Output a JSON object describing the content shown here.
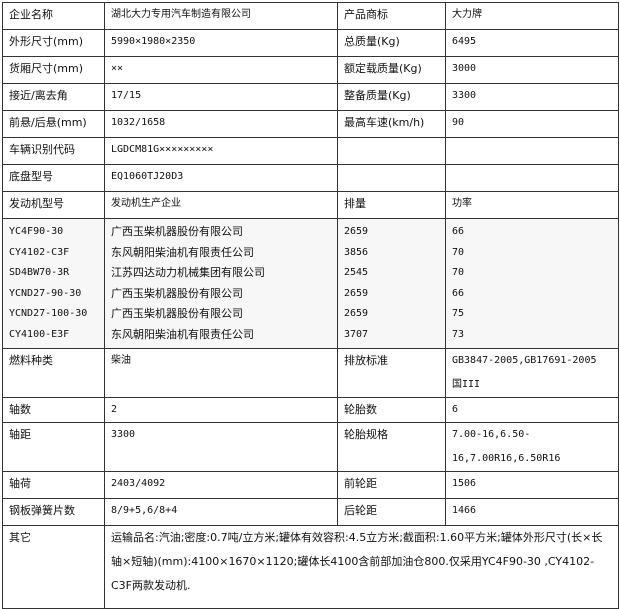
{
  "rows": [
    [
      "企业名称",
      "湖北大力专用汽车制造有限公司",
      "产品商标",
      "大力牌"
    ],
    [
      "外形尺寸(mm)",
      "5990×1980×2350",
      "总质量(Kg)",
      "6495"
    ],
    [
      "货厢尺寸(mm)",
      "××",
      "额定载质量(Kg)",
      "3000"
    ],
    [
      "接近/离去角",
      "17/15",
      "整备质量(Kg)",
      "3300"
    ],
    [
      "前悬/后悬(mm)",
      "1032/1658",
      "最高车速(km/h)",
      "90"
    ],
    [
      "车辆识别代码",
      "LGDCM81G×××××××××",
      "",
      ""
    ],
    [
      "底盘型号",
      "EQ1060TJ20D3",
      "",
      ""
    ],
    [
      "发动机型号",
      "发动机生产企业",
      "排量",
      "功率"
    ]
  ],
  "engines": [
    [
      "YC4F90-30",
      "广西玉柴机器股份有限公司",
      "2659",
      "66"
    ],
    [
      "CY4102-C3F",
      "东风朝阳柴油机有限责任公司",
      "3856",
      "70"
    ],
    [
      "SD4BW70-3R",
      "江苏四达动力机械集团有限公司",
      "2545",
      "70"
    ],
    [
      "YCND27-90-30",
      "广西玉柴机器股份有限公司",
      "2659",
      "66"
    ],
    [
      "YCND27-100-30",
      "广西玉柴机器股份有限公司",
      "2659",
      "75"
    ],
    [
      "CY4100-E3F",
      "东风朝阳柴油机有限责任公司",
      "3707",
      "73"
    ]
  ],
  "rows2": [
    [
      "燃料种类",
      "柴油",
      "排放标准",
      "GB3847-2005,GB17691-2005 国III"
    ],
    [
      "轴数",
      "2",
      "轮胎数",
      "6"
    ],
    [
      "轴距",
      "3300",
      "轮胎规格",
      "7.00-16,6.50-16,7.00R16,6.50R16"
    ],
    [
      "轴荷",
      "2403/4092",
      "前轮距",
      "1506"
    ],
    [
      "钢板弹簧片数",
      "8/9+5,6/8+4",
      "后轮距",
      "1466"
    ]
  ],
  "other": {
    "label": "其它",
    "text": "运输品名:汽油;密度:0.7吨/立方米;罐体有效容积:4.5立方米;截面积:1.60平方米;罐体外形尺寸(长×长轴×短轴)(mm):4100×1670×1120;罐体长4100含前部加油仓800.仅采用YC4F90-30 ,CY4102-C3F两款发动机."
  }
}
